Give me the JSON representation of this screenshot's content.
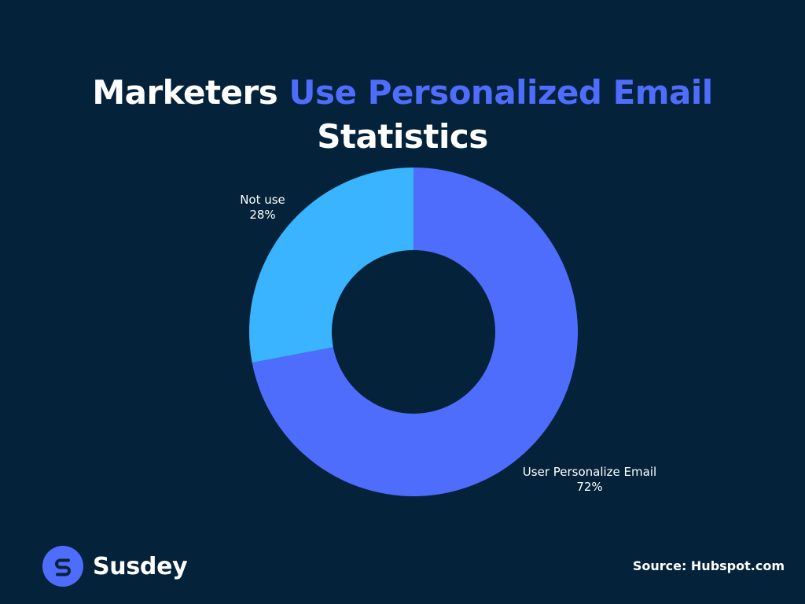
{
  "title": {
    "part1": "Marketers ",
    "part2": "Use Personalized Email",
    "part3": "Statistics"
  },
  "chart_data": {
    "type": "pie",
    "variant": "donut",
    "title": "Marketers Use Personalized Email Statistics",
    "slices": [
      {
        "label": "User Personalize Email",
        "value": 72,
        "display": "72%",
        "color": "#4f6dfc"
      },
      {
        "label": "Not use",
        "value": 28,
        "display": "28%",
        "color": "#3ab4ff"
      }
    ],
    "start": "12 o'clock",
    "direction": "clockwise",
    "legend": "none"
  },
  "brand": {
    "name": "Susdey",
    "logo_icon": "susdey-s-logo-icon"
  },
  "source": "Source: Hubspot.com",
  "colors": {
    "background": "#04233a",
    "accent": "#4f6dfc",
    "secondary": "#3ab4ff",
    "text": "#ffffff"
  }
}
